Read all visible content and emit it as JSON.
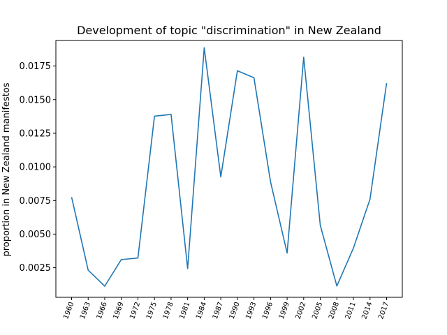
{
  "chart_data": {
    "type": "line",
    "title": "Development of topic \"discrimination\" in New Zealand",
    "xlabel": "",
    "ylabel": "proportion in New Zealand manifestos",
    "ylim": [
      0.0003,
      0.0194
    ],
    "yticks": [
      "0.0025",
      "0.0050",
      "0.0075",
      "0.0100",
      "0.0125",
      "0.0150",
      "0.0175"
    ],
    "categories": [
      "1960",
      "1963",
      "1966",
      "1969",
      "1972",
      "1975",
      "1978",
      "1981",
      "1984",
      "1987",
      "1990",
      "1993",
      "1996",
      "1999",
      "2002",
      "2005",
      "2008",
      "2011",
      "2014",
      "2017"
    ],
    "series": [
      {
        "color": "#1f77b4",
        "values": [
          0.00775,
          0.00232,
          0.00113,
          0.00311,
          0.00322,
          0.01377,
          0.0139,
          0.00244,
          0.01886,
          0.00925,
          0.01715,
          0.01663,
          0.00889,
          0.00359,
          0.01815,
          0.00566,
          0.00114,
          0.00396,
          0.0076,
          0.01623
        ]
      }
    ],
    "grid": false,
    "legend": "none"
  }
}
